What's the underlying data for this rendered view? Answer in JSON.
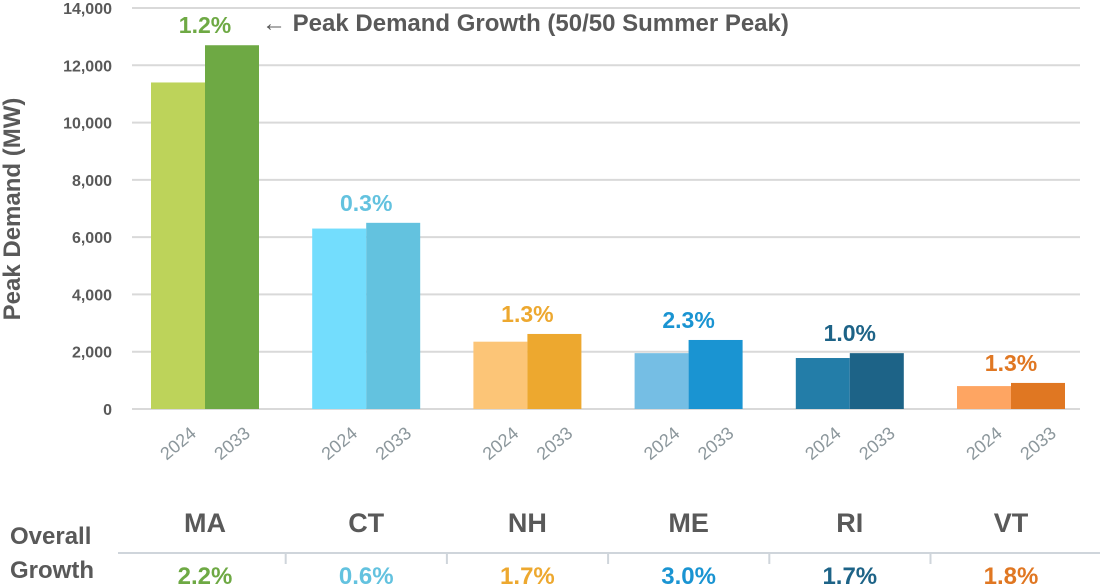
{
  "chart_data": {
    "type": "bar",
    "title": "",
    "ylabel": "Peak Demand (MW)",
    "xlabel": "",
    "ylim": [
      0,
      14000
    ],
    "yticks": [
      0,
      2000,
      4000,
      6000,
      8000,
      10000,
      12000,
      14000
    ],
    "ytick_labels": [
      "0",
      "2,000",
      "4,000",
      "6,000",
      "8,000",
      "10,000",
      "12,000",
      "14,000"
    ],
    "grid": true,
    "annotation": "← Peak Demand Growth (50/50 Summer Peak)",
    "series_years": [
      "2024",
      "2033"
    ],
    "categories": [
      "MA",
      "CT",
      "NH",
      "ME",
      "RI",
      "VT"
    ],
    "groups": [
      {
        "state": "MA",
        "values": [
          11400,
          12700
        ],
        "growth_label": "1.2%",
        "overall_growth": "2.2%",
        "colors": [
          "#bdd35a",
          "#6ea944"
        ],
        "label_color": "#6ea944"
      },
      {
        "state": "CT",
        "values": [
          6300,
          6500
        ],
        "growth_label": "0.3%",
        "overall_growth": "0.6%",
        "colors": [
          "#73ddfd",
          "#63c2df"
        ],
        "label_color": "#63c2df"
      },
      {
        "state": "NH",
        "values": [
          2350,
          2620
        ],
        "growth_label": "1.3%",
        "overall_growth": "1.7%",
        "colors": [
          "#fcc577",
          "#eda82f"
        ],
        "label_color": "#eda82f"
      },
      {
        "state": "ME",
        "values": [
          1950,
          2410
        ],
        "growth_label": "2.3%",
        "overall_growth": "3.0%",
        "colors": [
          "#75bee4",
          "#1a94d2"
        ],
        "label_color": "#1a94d2"
      },
      {
        "state": "RI",
        "values": [
          1780,
          1950
        ],
        "growth_label": "1.0%",
        "overall_growth": "1.7%",
        "colors": [
          "#237da8",
          "#1d6387"
        ],
        "label_color": "#1d6387"
      },
      {
        "state": "VT",
        "values": [
          800,
          910
        ],
        "growth_label": "1.3%",
        "overall_growth": "1.8%",
        "colors": [
          "#fea562",
          "#e07722"
        ],
        "label_color": "#e07722"
      }
    ],
    "table": {
      "row_label_line1": "Overall",
      "row_label_line2": "Growth"
    }
  },
  "colors": {
    "text_gray": "#595959",
    "grid": "#d9d9d9",
    "year_label": "#8c979c",
    "table_line": "#cfd5db"
  }
}
